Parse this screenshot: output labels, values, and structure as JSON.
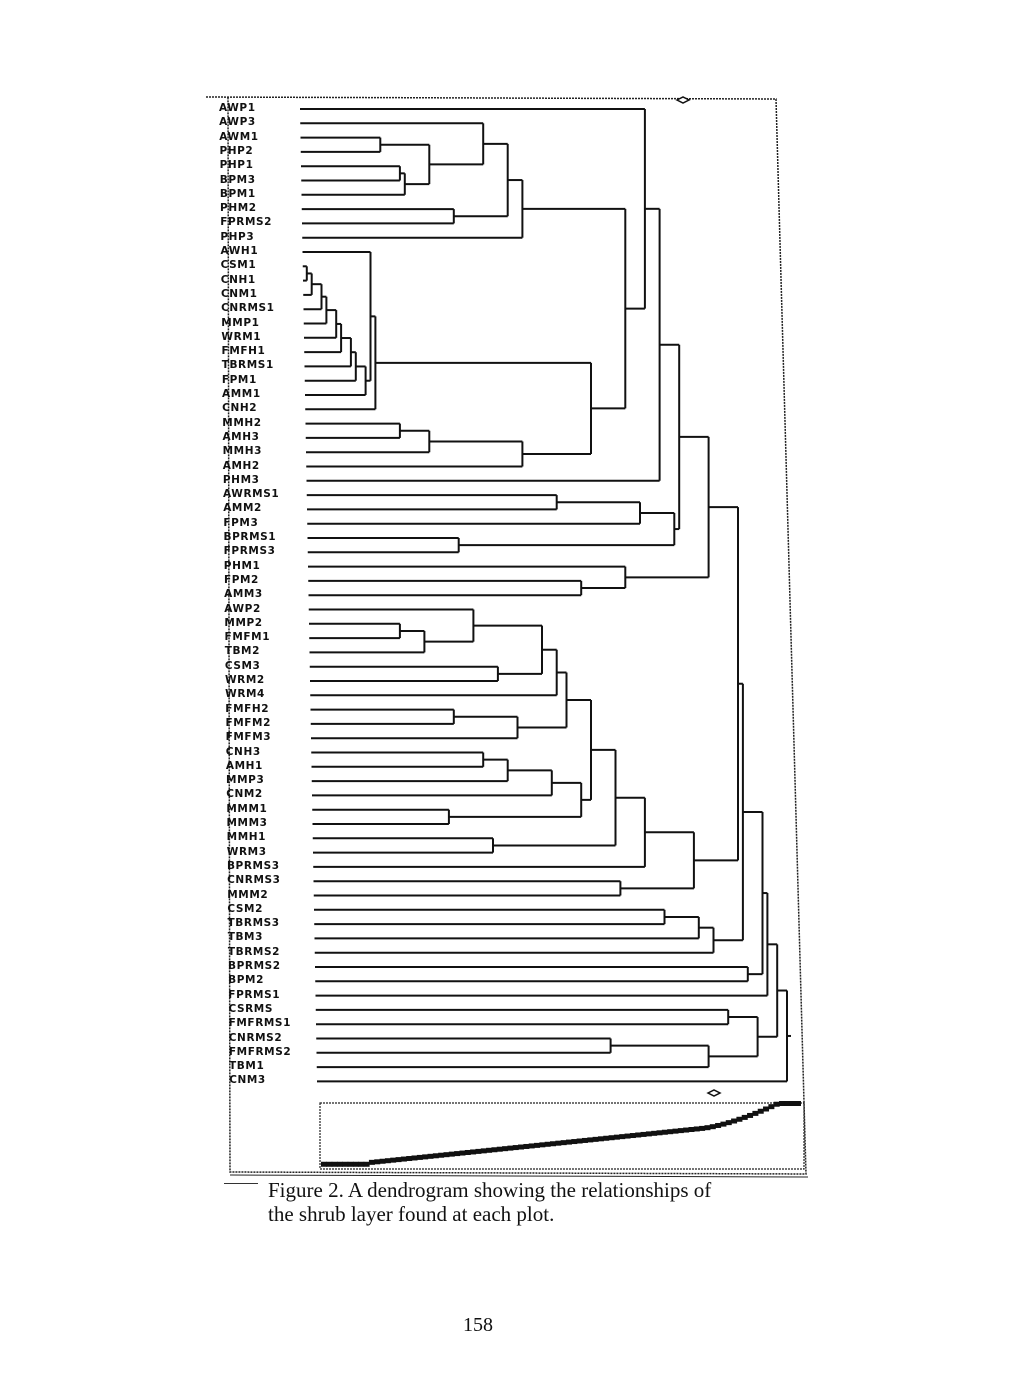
{
  "figure": {
    "caption_line1": "Figure 2.  A dendrogram showing the relationships of",
    "caption_line2": "the shrub layer found at each plot.",
    "page_number": "158"
  },
  "dendrogram": {
    "leaves": [
      "AWP1",
      "AWP3",
      "AWM1",
      "PHP2",
      "PHP1",
      "BPM3",
      "BPM1",
      "PHM2",
      "FPRMS2",
      "PHP3",
      "AWH1",
      "CSM1",
      "CNH1",
      "CNM1",
      "CNRMS1",
      "MMP1",
      "WRM1",
      "FMFH1",
      "TBRMS1",
      "FPM1",
      "AMM1",
      "CNH2",
      "MMH2",
      "AMH3",
      "MMH3",
      "AMH2",
      "PHM3",
      "AWRMS1",
      "AMM2",
      "FPM3",
      "BPRMS1",
      "FPRMS3",
      "PHM1",
      "FPM2",
      "AMM3",
      "AWP2",
      "MMP2",
      "FMFM1",
      "TBM2",
      "CSM3",
      "WRM2",
      "WRM4",
      "FMFH2",
      "FMFM2",
      "FMFM3",
      "CNH3",
      "AMH1",
      "MMP3",
      "CNM2",
      "MMM1",
      "MMM3",
      "MMH1",
      "WRM3",
      "BPRMS3",
      "CNRMS3",
      "MMM2",
      "CSM2",
      "TBRMS3",
      "TBM3",
      "TBRMS2",
      "BPRMS2",
      "BPM2",
      "FPRMS1",
      "CSRMS",
      "FMFRMS1",
      "CNRMS2",
      "FMFRMS2",
      "TBM1",
      "CNM3"
    ],
    "merges_note_format": "[first_leaf, split_leaf, last_leaf, distance]",
    "merges": [
      [
        2,
        2,
        3,
        17
      ],
      [
        4,
        4,
        5,
        21
      ],
      [
        4,
        5,
        6,
        22
      ],
      [
        2,
        3,
        6,
        27
      ],
      [
        1,
        1,
        6,
        38
      ],
      [
        7,
        7,
        8,
        32
      ],
      [
        1,
        6,
        8,
        43
      ],
      [
        1,
        8,
        9,
        46
      ],
      [
        11,
        11,
        12,
        2
      ],
      [
        11,
        12,
        13,
        3
      ],
      [
        11,
        13,
        14,
        5
      ],
      [
        11,
        14,
        15,
        6
      ],
      [
        11,
        15,
        16,
        8
      ],
      [
        11,
        16,
        17,
        9
      ],
      [
        11,
        17,
        18,
        11
      ],
      [
        11,
        18,
        19,
        12
      ],
      [
        11,
        19,
        20,
        14
      ],
      [
        10,
        10,
        20,
        15
      ],
      [
        10,
        20,
        21,
        16
      ],
      [
        22,
        22,
        23,
        21
      ],
      [
        22,
        23,
        24,
        27
      ],
      [
        22,
        24,
        25,
        46
      ],
      [
        10,
        21,
        25,
        60
      ],
      [
        1,
        9,
        25,
        67
      ],
      [
        0,
        0,
        25,
        71
      ],
      [
        0,
        25,
        26,
        74
      ],
      [
        27,
        27,
        28,
        53
      ],
      [
        27,
        28,
        29,
        70
      ],
      [
        30,
        30,
        31,
        33
      ],
      [
        27,
        29,
        31,
        77
      ],
      [
        0,
        26,
        31,
        78
      ],
      [
        33,
        33,
        34,
        58
      ],
      [
        32,
        32,
        34,
        67
      ],
      [
        0,
        31,
        34,
        84
      ],
      [
        36,
        36,
        37,
        21
      ],
      [
        36,
        37,
        38,
        26
      ],
      [
        35,
        35,
        38,
        36
      ],
      [
        39,
        39,
        40,
        41
      ],
      [
        35,
        38,
        40,
        50
      ],
      [
        35,
        40,
        41,
        53
      ],
      [
        42,
        42,
        43,
        32
      ],
      [
        42,
        43,
        44,
        45
      ],
      [
        35,
        41,
        44,
        55
      ],
      [
        45,
        45,
        46,
        38
      ],
      [
        45,
        46,
        47,
        43
      ],
      [
        45,
        47,
        48,
        52
      ],
      [
        49,
        49,
        50,
        31
      ],
      [
        45,
        48,
        50,
        58
      ],
      [
        35,
        44,
        50,
        60
      ],
      [
        51,
        51,
        52,
        40
      ],
      [
        35,
        50,
        52,
        65
      ],
      [
        35,
        52,
        53,
        71
      ],
      [
        54,
        54,
        55,
        66
      ],
      [
        35,
        53,
        55,
        81
      ],
      [
        0,
        34,
        55,
        90
      ],
      [
        56,
        56,
        57,
        75
      ],
      [
        56,
        57,
        58,
        82
      ],
      [
        56,
        58,
        59,
        85
      ],
      [
        0,
        55,
        59,
        91
      ],
      [
        60,
        60,
        61,
        92
      ],
      [
        0,
        59,
        61,
        95
      ],
      [
        0,
        61,
        62,
        96
      ],
      [
        63,
        63,
        64,
        88
      ],
      [
        65,
        65,
        66,
        64
      ],
      [
        65,
        66,
        67,
        84
      ],
      [
        63,
        64,
        67,
        94
      ],
      [
        0,
        62,
        67,
        98
      ],
      [
        0,
        67,
        68,
        100
      ]
    ]
  }
}
